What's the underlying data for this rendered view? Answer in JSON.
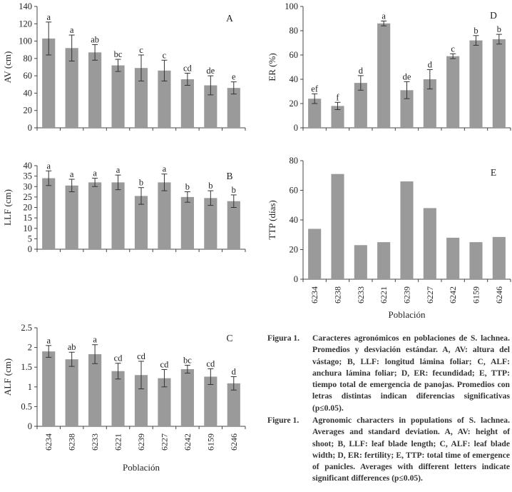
{
  "colors": {
    "bar": "#9a9a9a",
    "axis": "#444444",
    "text": "#222222"
  },
  "x_label": "Población",
  "chart_data": [
    {
      "id": "A",
      "type": "bar",
      "panel_label": "A",
      "ylabel": "AV (cm)",
      "ylim": [
        0,
        140
      ],
      "yticks": [
        0,
        20,
        40,
        60,
        80,
        100,
        120,
        140
      ],
      "categories": [
        "6234",
        "6238",
        "6233",
        "6221",
        "6239",
        "6227",
        "6242",
        "6159",
        "6246"
      ],
      "values": [
        103,
        92,
        87,
        72,
        69,
        66,
        56,
        49,
        46
      ],
      "errors": [
        19,
        15,
        9,
        7,
        15,
        12,
        7,
        11,
        7
      ],
      "letters": [
        "a",
        "a",
        "ab",
        "bc",
        "c",
        "c",
        "cd",
        "de",
        "e"
      ],
      "show_tick_labels": false
    },
    {
      "id": "B",
      "type": "bar",
      "panel_label": "B",
      "ylabel": "LLF (cm)",
      "ylim": [
        0,
        40
      ],
      "yticks": [
        0,
        5,
        10,
        15,
        20,
        25,
        30,
        35,
        40
      ],
      "categories": [
        "6234",
        "6238",
        "6233",
        "6221",
        "6239",
        "6227",
        "6242",
        "6159",
        "6246"
      ],
      "values": [
        34,
        30.5,
        32,
        32,
        25.5,
        32,
        25,
        24.5,
        23
      ],
      "errors": [
        3.5,
        3,
        2,
        3.5,
        4,
        4,
        2.5,
        3.5,
        3
      ],
      "letters": [
        "a",
        "a",
        "a",
        "a",
        "b",
        "a",
        "b",
        "b",
        "b"
      ],
      "show_tick_labels": false
    },
    {
      "id": "C",
      "type": "bar",
      "panel_label": "C",
      "ylabel": "ALF (cm)",
      "ylim": [
        0,
        2.5
      ],
      "yticks": [
        0,
        0.5,
        1,
        1.5,
        2,
        2.5
      ],
      "categories": [
        "6234",
        "6238",
        "6233",
        "6221",
        "6239",
        "6227",
        "6242",
        "6159",
        "6246"
      ],
      "values": [
        1.9,
        1.7,
        1.83,
        1.4,
        1.3,
        1.22,
        1.45,
        1.26,
        1.09
      ],
      "errors": [
        0.15,
        0.18,
        0.24,
        0.2,
        0.35,
        0.22,
        0.1,
        0.2,
        0.17
      ],
      "letters": [
        "a",
        "ab",
        "a",
        "cd",
        "cd",
        "cd",
        "bc",
        "cd",
        "d"
      ],
      "show_tick_labels": true
    },
    {
      "id": "D",
      "type": "bar",
      "panel_label": "D",
      "ylabel": "ER (%)",
      "ylim": [
        0,
        100
      ],
      "yticks": [
        0,
        20,
        40,
        60,
        80,
        100
      ],
      "categories": [
        "6234",
        "6238",
        "6233",
        "6221",
        "6239",
        "6227",
        "6242",
        "6159",
        "6246"
      ],
      "values": [
        24,
        18,
        37,
        86,
        31,
        40,
        59,
        72,
        73
      ],
      "errors": [
        4,
        3,
        6,
        2,
        7,
        8,
        2,
        4,
        4
      ],
      "letters": [
        "ef",
        "f",
        "d",
        "a",
        "de",
        "d",
        "c",
        "b",
        "b"
      ],
      "show_tick_labels": false
    },
    {
      "id": "E",
      "type": "bar",
      "panel_label": "E",
      "ylabel": "TTP (días)",
      "ylim": [
        0,
        80
      ],
      "yticks": [
        0,
        20,
        40,
        60,
        80
      ],
      "categories": [
        "6234",
        "6238",
        "6233",
        "6221",
        "6239",
        "6227",
        "6242",
        "6159",
        "6246"
      ],
      "values": [
        34,
        71,
        23,
        25,
        66,
        48,
        28,
        25,
        28.5
      ],
      "errors": [],
      "letters": [],
      "show_tick_labels": true
    }
  ],
  "caption_es": {
    "label": "Figura 1.",
    "text": "Caracteres agronómicos en poblaciones de S. lachnea. Promedios y desviación estándar. A, AV: altura del vástago; B, LLF: longitud lámina foliar; C, ALF: anchura lámina foliar; D, ER: fecundidad; E, TTP: tiempo total de emergencia de panojas. Promedios con letras distintas indican diferencias significativas (p≤0.05)."
  },
  "caption_en": {
    "label": "Figure 1.",
    "text": "Agronomic characters in populations of S. lachnea. Averages and standard deviation. A, AV: height of shoot; B, LLF: leaf blade length; C, ALF: leaf blade width; D, ER: fertility; E, TTP: total time of emergence of panicles. Averages with different letters indicate significant differences (p≤0.05)."
  }
}
